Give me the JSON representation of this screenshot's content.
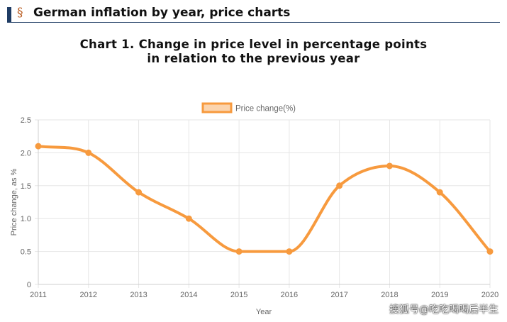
{
  "page": {
    "section_symbol": "§",
    "header_title": "German inflation by year, price charts",
    "chart_title_line1": "Chart 1. Change in price level in percentage points",
    "chart_title_line2": "in relation to the previous year",
    "watermark": "搜狐号@吃吃喝喝后半生"
  },
  "colors": {
    "series": "#f79a3e",
    "series_fill": "#fbd4ae",
    "grid": "#e6e6e6",
    "text": "#666666",
    "header_bar": "#1f3c64"
  },
  "chart_data": {
    "type": "line",
    "title": "Chart 1. Change in price level in percentage points in relation to the previous year",
    "xlabel": "Year",
    "ylabel": "Price change, as %",
    "categories": [
      "2011",
      "2012",
      "2013",
      "2014",
      "2015",
      "2016",
      "2017",
      "2018",
      "2019",
      "2020"
    ],
    "series": [
      {
        "name": "Price change(%)",
        "values": [
          2.1,
          2.0,
          1.4,
          1.0,
          0.5,
          0.5,
          1.5,
          1.8,
          1.4,
          0.5
        ]
      }
    ],
    "ylim": [
      0,
      2.5
    ],
    "yticks": [
      "0",
      "0.5",
      "1.0",
      "1.5",
      "2.0",
      "2.5"
    ],
    "ytick_values": [
      0,
      0.5,
      1.0,
      1.5,
      2.0,
      2.5
    ],
    "grid": true,
    "legend_position": "top-center",
    "smooth": true
  }
}
